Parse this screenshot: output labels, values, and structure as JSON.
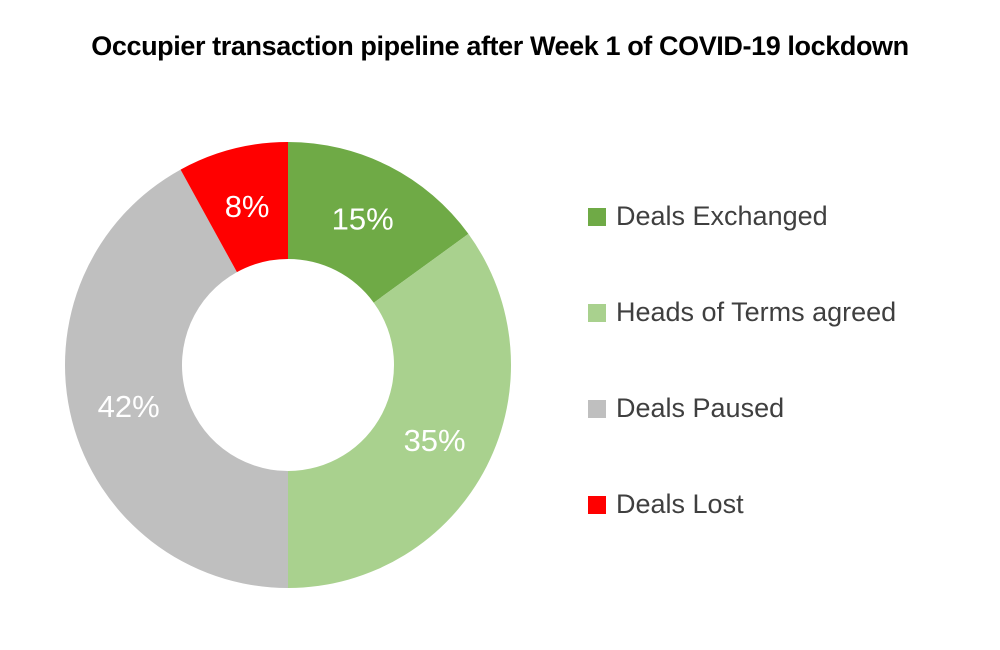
{
  "title": "Occupier transaction pipeline after Week 1 of COVID-19 lockdown",
  "chart_data": {
    "type": "pie",
    "subtype": "donut",
    "title": "Occupier transaction pipeline after Week 1 of COVID-19 lockdown",
    "categories": [
      "Deals Exchanged",
      "Heads of Terms agreed",
      "Deals Paused",
      "Deals Lost"
    ],
    "values": [
      15,
      35,
      42,
      8
    ],
    "segments": [
      {
        "label": "Deals Exchanged",
        "value": 15,
        "display": "15%",
        "color": "#6FAA46"
      },
      {
        "label": "Heads of Terms agreed",
        "value": 35,
        "display": "35%",
        "color": "#A9D18E"
      },
      {
        "label": "Deals Paused",
        "value": 42,
        "display": "42%",
        "color": "#BFBFBF"
      },
      {
        "label": "Deals Lost",
        "value": 8,
        "display": "8%",
        "color": "#FF0000"
      }
    ],
    "start_angle_deg": 0,
    "direction": "clockwise",
    "inner_radius_ratio": 0.475,
    "data_label_color": "#FFFFFF",
    "legend_position": "right",
    "grid": false,
    "background_color": "#FFFFFF"
  }
}
